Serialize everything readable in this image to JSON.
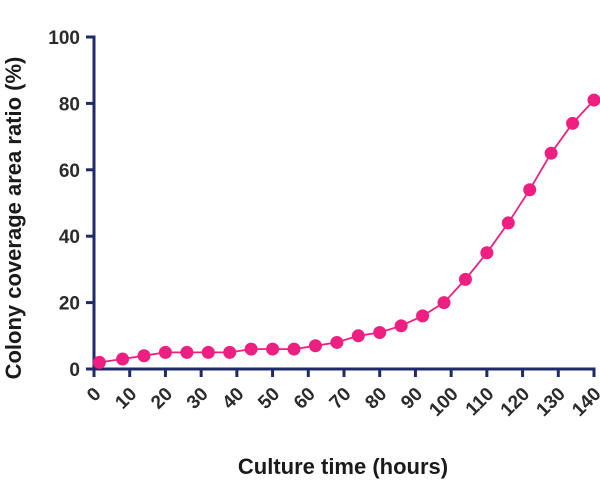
{
  "chart_data": {
    "type": "line",
    "title": "",
    "xlabel": "Culture time (hours)",
    "ylabel": "Colony coverage area ratio (%)",
    "xlim": [
      0,
      140
    ],
    "ylim": [
      0,
      100
    ],
    "x_ticks": [
      0,
      10,
      20,
      30,
      40,
      50,
      60,
      70,
      80,
      90,
      100,
      110,
      120,
      130,
      140
    ],
    "x_tick_labels": [
      "0",
      "10",
      "20",
      "30",
      "40",
      "50",
      "60",
      "70",
      "80",
      "90",
      "100",
      "110",
      "120",
      "130",
      "140"
    ],
    "y_ticks": [
      0,
      20,
      40,
      60,
      80,
      100
    ],
    "y_tick_labels": [
      "0",
      "20",
      "40",
      "60",
      "80",
      "100"
    ],
    "grid": false,
    "legend": "none",
    "colors": {
      "series": "#ee1f80",
      "axis": "#1f2a6b",
      "text": "#2b2b2b"
    },
    "series": [
      {
        "x": [
          1.5,
          8,
          14,
          20,
          26,
          32,
          38,
          44,
          50,
          56,
          62,
          68,
          74,
          80,
          86,
          92,
          98,
          104,
          110,
          116,
          122,
          128,
          134,
          140
        ],
        "y": [
          2,
          3,
          4,
          5,
          5,
          5,
          5,
          6,
          6,
          6,
          7,
          8,
          10,
          11,
          13,
          16,
          20,
          27,
          35,
          44,
          54,
          65,
          74,
          81
        ]
      }
    ]
  }
}
